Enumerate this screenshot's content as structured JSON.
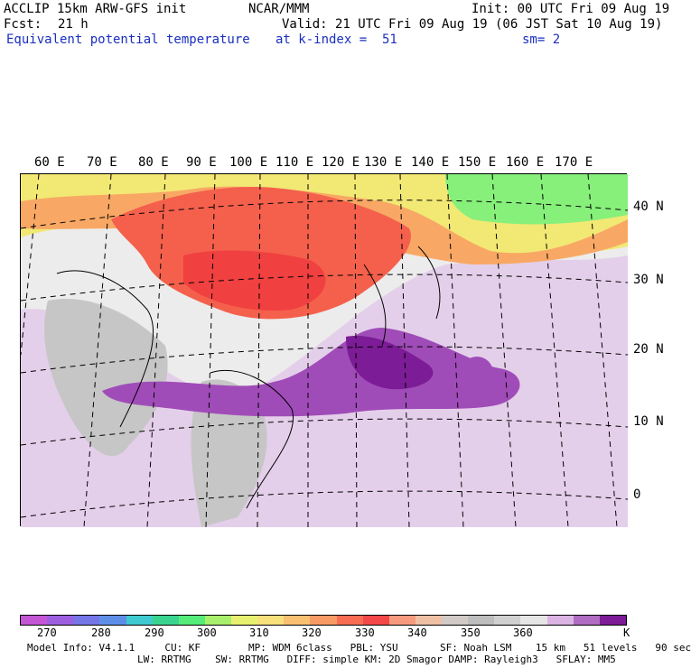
{
  "header": {
    "model_title": "ACCLIP 15km ARW-GFS init",
    "org": "NCAR/MMM",
    "init": "Init: 00 UTC Fri 09 Aug 19",
    "forecast_label": "Fcst:",
    "forecast_value": "21 h",
    "valid": "Valid: 21 UTC Fri 09 Aug 19 (06 JST Sat 10 Aug 19)",
    "field_name": "Equivalent potential temperature",
    "level": "at k-index =  51",
    "smoothing": "sm= 2"
  },
  "map": {
    "lon_labels": [
      "60 E",
      "70 E",
      "80 E",
      "90 E",
      "100 E",
      "110 E",
      "120 E",
      "130 E",
      "140 E",
      "150 E",
      "160 E",
      "170 E"
    ],
    "lat_labels": [
      "40 N",
      "30 N",
      "20 N",
      "10 N",
      "0"
    ]
  },
  "colorbar": {
    "unit": "K",
    "ticks": [
      "270",
      "280",
      "290",
      "300",
      "310",
      "320",
      "330",
      "340",
      "350",
      "360"
    ],
    "colors": [
      "#c455d4",
      "#9d5fe0",
      "#7575e8",
      "#5e8fe8",
      "#3ecad0",
      "#39d48f",
      "#55ec7a",
      "#a8f06b",
      "#e8f070",
      "#f8e07a",
      "#f8c070",
      "#f89a64",
      "#f86c54",
      "#f44848",
      "#f89a7e",
      "#f0c0a4",
      "#d2cac6",
      "#bebebe",
      "#d0d0d0",
      "#e6e6e6",
      "#dbb4e4",
      "#b06cc0",
      "#7c1c96"
    ]
  },
  "footer": {
    "line1": "Model Info: V4.1.1     CU: KF        MP: WDM 6class   PBL: YSU       SF: Noah LSM    15 km   51 levels   90 sec",
    "line2": "LW: RRTMG    SW: RRTMG   DIFF: simple KM: 2D Smagor DAMP: Rayleigh3   SFLAY: MM5"
  }
}
